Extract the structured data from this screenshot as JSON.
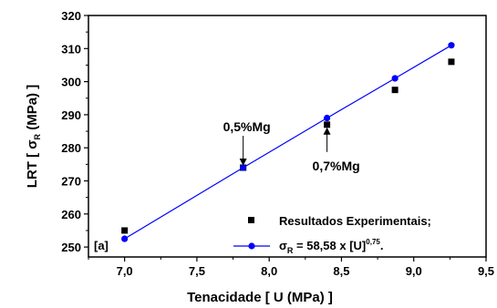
{
  "chart_data": {
    "type": "scatter",
    "xlabel": "Tenacidade [ U (MPa) ]",
    "ylabel_parts": {
      "prefix": "LRT [ ",
      "symbol": "σ",
      "subscript": "R",
      "suffix": " (MPa) ]"
    },
    "xlim": [
      6.75,
      9.5
    ],
    "ylim": [
      247,
      320
    ],
    "x_ticks": [
      "7,0",
      "7,5",
      "8,0",
      "8,5",
      "9,0",
      "9,5"
    ],
    "x_tick_values": [
      7.0,
      7.5,
      8.0,
      8.5,
      9.0,
      9.5
    ],
    "y_ticks": [
      "250",
      "260",
      "270",
      "280",
      "290",
      "300",
      "310",
      "320"
    ],
    "y_tick_values": [
      250,
      260,
      270,
      280,
      290,
      300,
      310,
      320
    ],
    "panel_label": "[a]",
    "series": [
      {
        "name": "Resultados Experimentais;",
        "marker": "square",
        "color": "#000000",
        "x": [
          7.0,
          7.82,
          8.4,
          8.87,
          9.26
        ],
        "y": [
          255,
          274,
          287,
          297.5,
          306
        ]
      },
      {
        "name_parts": {
          "symbol": "σ",
          "subscript": "R",
          "equation": " = 58,58 x [U]",
          "exponent": "0,75",
          "end": "."
        },
        "marker": "circle-line",
        "color": "#0000ff",
        "x": [
          7.0,
          7.82,
          8.4,
          8.87,
          9.26
        ],
        "y": [
          252.5,
          274,
          289,
          301,
          311
        ]
      }
    ],
    "annotations": [
      {
        "text": "0,5%Mg",
        "x": 7.82,
        "y": 274
      },
      {
        "text": "0,7%Mg",
        "x": 8.4,
        "y": 287
      }
    ]
  }
}
